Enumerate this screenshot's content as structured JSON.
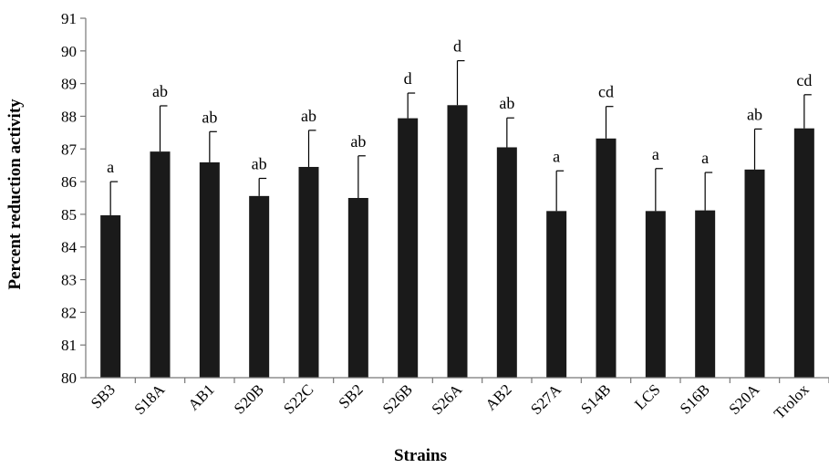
{
  "chart_data": {
    "type": "bar",
    "title": "",
    "xlabel": "Strains",
    "ylabel": "Percent reduction activity",
    "ylim": [
      80,
      91
    ],
    "yticks": [
      80,
      81,
      82,
      83,
      84,
      85,
      86,
      87,
      88,
      89,
      90,
      91
    ],
    "grid": false,
    "legend": "none",
    "bar_color": "#1a1a1a",
    "categories": [
      "SB3",
      "S18A",
      "AB1",
      "S20B",
      "S22C",
      "SB2",
      "S26B",
      "S26A",
      "AB2",
      "S27A",
      "S14B",
      "LCS",
      "S16B",
      "S20A",
      "Trolox"
    ],
    "values": [
      84.97,
      86.92,
      86.59,
      85.56,
      86.45,
      85.5,
      87.94,
      88.34,
      87.05,
      85.1,
      87.32,
      85.1,
      85.12,
      86.37,
      87.63
    ],
    "error": [
      1.03,
      1.4,
      0.94,
      0.54,
      1.12,
      1.29,
      0.77,
      1.36,
      0.9,
      1.23,
      0.98,
      1.3,
      1.16,
      1.24,
      1.03
    ],
    "significance": [
      "a",
      "ab",
      "ab",
      "ab",
      "ab",
      "ab",
      "d",
      "d",
      "ab",
      "a",
      "cd",
      "a",
      "a",
      "ab",
      "cd"
    ]
  }
}
